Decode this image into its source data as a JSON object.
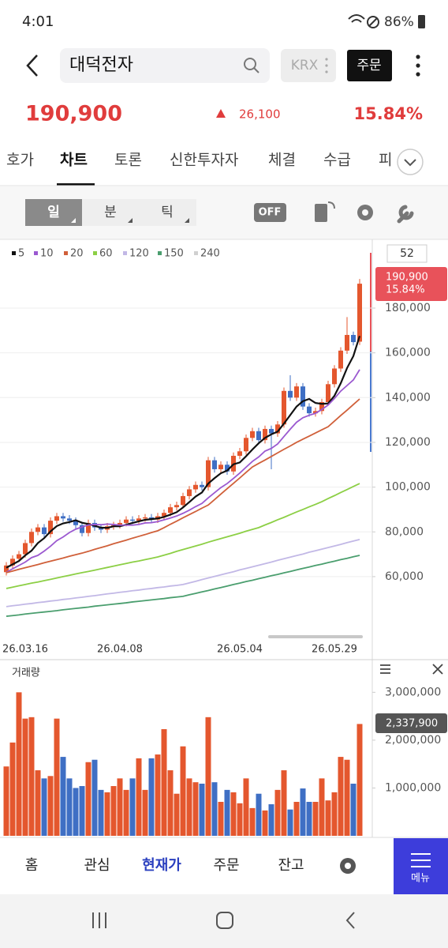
{
  "status_bar": {
    "time": "4:01",
    "battery": "86%"
  },
  "header": {
    "search": "대덕전자",
    "market": "KRX",
    "order_button": "주문"
  },
  "quote": {
    "price": "190,900",
    "change": "26,100",
    "rate": "15.84%"
  },
  "tabs": [
    "호가",
    "차트",
    "토론",
    "신한투자자",
    "체결",
    "수급",
    "피"
  ],
  "active_tab": 1,
  "periods": [
    "일",
    "분",
    "틱"
  ],
  "active_period": 0,
  "toggle": "OFF",
  "chart_data": {
    "type": "candlestick",
    "categories": [
      null,
      null,
      null,
      "26.03.16",
      null,
      null,
      null,
      null,
      null,
      null,
      null,
      null,
      null,
      null,
      null,
      null,
      null,
      null,
      "26.04.08",
      null,
      null,
      null,
      null,
      null,
      null,
      null,
      null,
      null,
      null,
      null,
      null,
      null,
      null,
      null,
      null,
      null,
      null,
      "26.05.04",
      null,
      null,
      null,
      null,
      null,
      null,
      null,
      null,
      null,
      null,
      null,
      null,
      null,
      null,
      "26.05.29",
      null,
      null,
      null,
      null
    ],
    "open": [
      62000,
      65000,
      68000,
      70000,
      75000,
      80000,
      82000,
      79000,
      85000,
      87000,
      86000,
      85000,
      83000,
      79500,
      84000,
      82000,
      81000,
      82500,
      83000,
      84000,
      85500,
      85000,
      86000,
      86500,
      85500,
      87000,
      88500,
      91000,
      92000,
      96000,
      99000,
      101000,
      100000,
      112000,
      108000,
      110000,
      107000,
      114000,
      116000,
      122000,
      125000,
      121000,
      126000,
      124000,
      128000,
      143000,
      140000,
      145000,
      136000,
      133000,
      134000,
      138000,
      146000,
      153000,
      161000,
      168000,
      165000
    ],
    "high": [
      66500,
      69500,
      71500,
      76500,
      81500,
      83500,
      83500,
      86500,
      88500,
      88500,
      87500,
      86500,
      84500,
      85500,
      85500,
      83500,
      84000,
      84500,
      85500,
      87000,
      87000,
      87500,
      88000,
      88000,
      88500,
      90000,
      92500,
      93500,
      97500,
      100500,
      102500,
      102500,
      113500,
      113500,
      111500,
      111500,
      115500,
      117500,
      123500,
      126500,
      126500,
      127500,
      127500,
      129500,
      144500,
      150000,
      146500,
      146500,
      137500,
      135500,
      139500,
      147500,
      154500,
      162500,
      176000,
      169500,
      193000
    ],
    "low": [
      60500,
      63500,
      66500,
      68500,
      73500,
      78500,
      77500,
      77500,
      83500,
      84500,
      83500,
      81500,
      78000,
      78000,
      80500,
      79500,
      79500,
      81000,
      81500,
      82500,
      83500,
      83500,
      84500,
      84000,
      84000,
      85500,
      87000,
      89500,
      90500,
      94500,
      97500,
      98500,
      98500,
      106500,
      106500,
      105500,
      105500,
      112500,
      114500,
      120500,
      119500,
      119500,
      108000,
      122500,
      126500,
      138500,
      138500,
      134500,
      131500,
      131500,
      132500,
      136500,
      144500,
      151500,
      159500,
      163300,
      163500
    ],
    "close": [
      65000,
      68000,
      70000,
      75000,
      80000,
      82000,
      79000,
      85000,
      87000,
      86000,
      85000,
      83000,
      79500,
      84000,
      82000,
      81000,
      82500,
      83000,
      84000,
      85500,
      85000,
      86000,
      86500,
      85500,
      87000,
      88500,
      91000,
      92000,
      96000,
      99000,
      101000,
      100000,
      112000,
      108000,
      110000,
      107000,
      114000,
      116000,
      122000,
      125000,
      121000,
      126000,
      124000,
      128000,
      143000,
      140000,
      145000,
      136000,
      133000,
      134000,
      138000,
      146000,
      153000,
      161000,
      168000,
      164800,
      190900
    ],
    "up_color": "#e4572e",
    "down_color": "#3f6fc4",
    "ylim": [
      33500,
      210000
    ],
    "yticks": [
      {
        "value": 60000,
        "label": "60,000"
      },
      {
        "value": 80000,
        "label": "80,000"
      },
      {
        "value": 100000,
        "label": "100,000"
      },
      {
        "value": 120000,
        "label": "120,000"
      },
      {
        "value": 140000,
        "label": "140,000"
      },
      {
        "value": 160000,
        "label": "160,000"
      },
      {
        "value": 180000,
        "label": "180,000"
      }
    ],
    "grid": true,
    "visible_count": 52,
    "moving_averages": [
      {
        "name": "5",
        "color": "#111111",
        "values": [
          64000,
          65500,
          67000,
          69500,
          71600,
          75000,
          77200,
          80200,
          82600,
          83800,
          84400,
          85200,
          84100,
          83500,
          82700,
          81900,
          81800,
          82500,
          82500,
          83200,
          84000,
          84700,
          85400,
          85700,
          86000,
          86700,
          87700,
          88800,
          90900,
          93300,
          95800,
          97600,
          101600,
          104000,
          106200,
          107400,
          110200,
          111000,
          113800,
          116800,
          119600,
          122000,
          123600,
          124800,
          128400,
          132200,
          136000,
          138400,
          139400,
          137600,
          137200,
          137400,
          140800,
          146400,
          153200,
          158560,
          167540
        ]
      },
      {
        "name": "10",
        "color": "#9b59d0",
        "values": [
          62000,
          63500,
          65000,
          66500,
          68500,
          69500,
          71400,
          73600,
          76100,
          77700,
          79700,
          81200,
          82200,
          83100,
          83300,
          83200,
          83500,
          83300,
          83000,
          83000,
          83000,
          83300,
          84000,
          84100,
          84600,
          85400,
          86200,
          87100,
          88300,
          89700,
          91300,
          92700,
          95200,
          97500,
          99800,
          101600,
          103900,
          106300,
          108900,
          111500,
          113500,
          116100,
          117300,
          119300,
          122600,
          125900,
          129000,
          131000,
          132100,
          133000,
          134700,
          136700,
          139600,
          142900,
          145400,
          147900,
          152500
        ]
      },
      {
        "name": "20",
        "color": "#d0603a",
        "values": [
          61800,
          62500,
          63300,
          64000,
          64700,
          65400,
          66200,
          66900,
          67600,
          68300,
          69100,
          69800,
          70500,
          71300,
          72200,
          73000,
          73800,
          74700,
          75500,
          76300,
          77200,
          78000,
          78800,
          79700,
          80500,
          81900,
          83400,
          84800,
          86300,
          87700,
          89100,
          90600,
          92000,
          94400,
          96900,
          99300,
          101700,
          104100,
          106600,
          109000,
          110600,
          112100,
          113700,
          115300,
          116900,
          118400,
          120000,
          121400,
          122800,
          124200,
          125600,
          127000,
          129500,
          132000,
          134400,
          136900,
          139400
        ]
      },
      {
        "name": "60",
        "color": "#8ccf45",
        "values": [
          54700,
          55300,
          55900,
          56500,
          57100,
          57600,
          58200,
          58800,
          59400,
          60000,
          60600,
          61200,
          61800,
          62300,
          62900,
          63500,
          64100,
          64700,
          65300,
          65900,
          66500,
          67000,
          67600,
          68200,
          68800,
          69600,
          70400,
          71300,
          72100,
          72900,
          73700,
          74500,
          75400,
          76200,
          77000,
          77800,
          78600,
          79400,
          80300,
          81100,
          81900,
          83100,
          84200,
          85400,
          86500,
          87700,
          88900,
          90000,
          91200,
          92300,
          93500,
          94900,
          96200,
          97600,
          98900,
          100300,
          101600
        ]
      },
      {
        "name": "120",
        "color": "#c2b8e6",
        "values": [
          46600,
          47000,
          47300,
          47700,
          48000,
          48400,
          48700,
          49100,
          49400,
          49800,
          50100,
          50500,
          50800,
          51200,
          51500,
          51900,
          52300,
          52600,
          53000,
          53300,
          53700,
          54000,
          54400,
          54700,
          55100,
          55400,
          55800,
          56100,
          56500,
          57200,
          57900,
          58700,
          59400,
          60100,
          60800,
          61500,
          62200,
          63000,
          63700,
          64400,
          65100,
          65800,
          66500,
          67300,
          68000,
          68700,
          69400,
          70100,
          70900,
          71600,
          72300,
          73000,
          73700,
          74400,
          75200,
          75900,
          76600
        ]
      },
      {
        "name": "150",
        "color": "#4a9e6e",
        "values": [
          42300,
          42600,
          42900,
          43300,
          43600,
          43900,
          44200,
          44500,
          44800,
          45200,
          45500,
          45800,
          46100,
          46400,
          46800,
          47100,
          47400,
          47700,
          48000,
          48300,
          48700,
          49000,
          49300,
          49600,
          49900,
          50200,
          50600,
          50900,
          51200,
          51900,
          52500,
          53200,
          53800,
          54500,
          55100,
          55800,
          56500,
          57100,
          57800,
          58400,
          59100,
          59700,
          60400,
          61000,
          61700,
          62300,
          63000,
          63700,
          64300,
          65000,
          65600,
          66300,
          66900,
          67600,
          68200,
          68900,
          69500
        ]
      },
      {
        "name": "240",
        "color": "#d0d0d0"
      }
    ],
    "volume": {
      "title": "거래량",
      "values": [
        1450000,
        1950000,
        3000000,
        2450000,
        2480000,
        1370000,
        1200000,
        1250000,
        2450000,
        1650000,
        1200000,
        1000000,
        1040000,
        1540000,
        1590000,
        960000,
        910000,
        1040000,
        1200000,
        960000,
        1200000,
        1620000,
        960000,
        1620000,
        1700000,
        2230000,
        1370000,
        880000,
        1870000,
        1200000,
        1120000,
        1090000,
        2480000,
        1120000,
        710000,
        960000,
        910000,
        680000,
        1200000,
        580000,
        880000,
        530000,
        660000,
        960000,
        1370000,
        550000,
        710000,
        990000,
        710000,
        710000,
        1200000,
        740000,
        910000,
        1650000,
        1590000,
        1090000,
        2337900
      ],
      "current_label": "2,337,900",
      "ylim": [
        0,
        3600000
      ],
      "yticks": [
        {
          "value": 1000000,
          "label": "1,000,000"
        },
        {
          "value": 2000000,
          "label": "2,000,000"
        },
        {
          "value": 3000000,
          "label": "3,000,000"
        }
      ]
    }
  },
  "bottom_nav": [
    "홈",
    "관심",
    "현재가",
    "주문",
    "잔고"
  ],
  "active_nav": 2,
  "menu": "메뉴"
}
